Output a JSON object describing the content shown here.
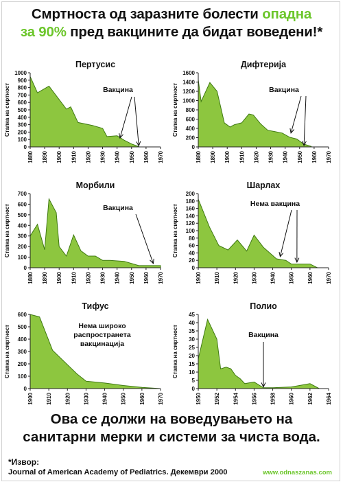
{
  "header": {
    "line1_pre": "Смртноста од заразните болести ",
    "line1_hl": "опадна",
    "line2_hl": "за 90%",
    "line2_post": " пред вакцините да бидат воведени!*"
  },
  "chart_data": [
    {
      "type": "area",
      "title": "Пертусис",
      "ylabel": "Стапка на смртност",
      "x": [
        1880,
        1885,
        1893,
        1900,
        1905,
        1908,
        1913,
        1923,
        1930,
        1933,
        1940,
        1945,
        1950,
        1955
      ],
      "values": [
        950,
        730,
        820,
        640,
        510,
        540,
        330,
        290,
        250,
        140,
        150,
        90,
        40,
        5
      ],
      "xlim": [
        1880,
        1970
      ],
      "ylim": [
        0,
        1000
      ],
      "xticks": [
        "1880",
        "1890",
        "1900",
        "1910",
        "1920",
        "1930",
        "1940",
        "1950",
        "1960",
        "1970"
      ],
      "yticks": [
        "0",
        "100",
        "200",
        "300",
        "400",
        "500",
        "600",
        "700",
        "800",
        "900",
        "1000"
      ],
      "annotations": [
        "Вакцина"
      ],
      "color": "#8dc63f"
    },
    {
      "type": "area",
      "title": "Дифтерија",
      "ylabel": "Стапка на смртност",
      "x": [
        1880,
        1882,
        1888,
        1893,
        1898,
        1902,
        1905,
        1910,
        1915,
        1918,
        1923,
        1928,
        1933,
        1938,
        1943,
        1948,
        1953,
        1958
      ],
      "values": [
        1450,
        980,
        1390,
        1200,
        520,
        430,
        480,
        520,
        710,
        690,
        500,
        360,
        330,
        300,
        210,
        170,
        60,
        10
      ],
      "xlim": [
        1880,
        1970
      ],
      "ylim": [
        0,
        1600
      ],
      "xticks": [
        "1880",
        "1890",
        "1900",
        "1910",
        "1920",
        "1930",
        "1940",
        "1950",
        "1960",
        "1970"
      ],
      "yticks": [
        "0",
        "200",
        "400",
        "600",
        "800",
        "1000",
        "1200",
        "1400",
        "1600"
      ],
      "annotations": [
        "Вакцина"
      ],
      "color": "#8dc63f"
    },
    {
      "type": "area",
      "title": "Морбили",
      "ylabel": "Стапка на смртност",
      "x": [
        1880,
        1885,
        1890,
        1893,
        1898,
        1900,
        1905,
        1910,
        1915,
        1920,
        1925,
        1930,
        1935,
        1945,
        1955,
        1960,
        1970
      ],
      "values": [
        300,
        410,
        170,
        650,
        520,
        200,
        110,
        310,
        160,
        110,
        110,
        70,
        70,
        60,
        20,
        20,
        20
      ],
      "xlim": [
        1880,
        1970
      ],
      "ylim": [
        0,
        700
      ],
      "xticks": [
        "1880",
        "1890",
        "1900",
        "1910",
        "1920",
        "1930",
        "1940",
        "1950",
        "1960",
        "1970"
      ],
      "yticks": [
        "0",
        "100",
        "200",
        "300",
        "400",
        "500",
        "600",
        "700"
      ],
      "annotations": [
        "Вакцина"
      ],
      "color": "#8dc63f"
    },
    {
      "type": "area",
      "title": "Шарлах",
      "ylabel": "Стапка на смртност",
      "x": [
        1900,
        1906,
        1911,
        1916,
        1921,
        1926,
        1930,
        1935,
        1942,
        1947,
        1950,
        1955,
        1960,
        1964
      ],
      "values": [
        185,
        110,
        60,
        48,
        75,
        45,
        88,
        55,
        24,
        20,
        10,
        10,
        10,
        0
      ],
      "xlim": [
        1900,
        1970
      ],
      "ylim": [
        0,
        200
      ],
      "xticks": [
        "1900",
        "1910",
        "1920",
        "1930",
        "1940",
        "1950",
        "1960",
        "1970"
      ],
      "yticks": [
        "0",
        "20",
        "40",
        "60",
        "80",
        "100",
        "120",
        "140",
        "160",
        "180",
        "200"
      ],
      "annotations": [
        "Нема вакцина"
      ],
      "color": "#8dc63f"
    },
    {
      "type": "area",
      "title": "Тифус",
      "ylabel": "Стапка на смртност",
      "x": [
        1900,
        1905,
        1912,
        1925,
        1930,
        1940,
        1950,
        1960,
        1970
      ],
      "values": [
        600,
        580,
        310,
        120,
        60,
        45,
        25,
        10,
        0
      ],
      "xlim": [
        1900,
        1970
      ],
      "ylim": [
        0,
        600
      ],
      "xticks": [
        "1900",
        "1910",
        "1920",
        "1930",
        "1940",
        "1950",
        "1960",
        "1970"
      ],
      "yticks": [
        "0",
        "100",
        "200",
        "300",
        "400",
        "500",
        "600"
      ],
      "annotations": [
        "Нема широко",
        "распространета",
        "вакцинација"
      ],
      "color": "#8dc63f"
    },
    {
      "type": "area",
      "title": "Полио",
      "ylabel": "Стапка на смртност",
      "x": [
        1950,
        1951,
        1952,
        1952.4,
        1953,
        1953.5,
        1954,
        1954.5,
        1955,
        1956,
        1957,
        1958,
        1960,
        1962,
        1963
      ],
      "values": [
        18,
        42,
        30,
        12,
        13,
        12,
        8,
        6,
        3,
        4,
        0.5,
        0.5,
        1,
        3,
        0
      ],
      "xlim": [
        1950,
        1964
      ],
      "ylim": [
        0,
        45
      ],
      "xticks": [
        "1950",
        "1952",
        "1954",
        "1956",
        "1958",
        "1960",
        "1962",
        "1964"
      ],
      "yticks": [
        "0",
        "5",
        "10",
        "15",
        "20",
        "25",
        "30",
        "35",
        "40",
        "45"
      ],
      "annotations": [
        "Вакцина"
      ],
      "color": "#8dc63f"
    }
  ],
  "footer": {
    "conclusion_line1": "Ова се должи на воведувањето на",
    "conclusion_line2": "санитарни мерки и системи за чиста вода.",
    "source_label": "*Извор:",
    "source_text": "Journal of American Academy of Pediatrics. Декември 2000",
    "website": "www.odnaszanas.com"
  }
}
